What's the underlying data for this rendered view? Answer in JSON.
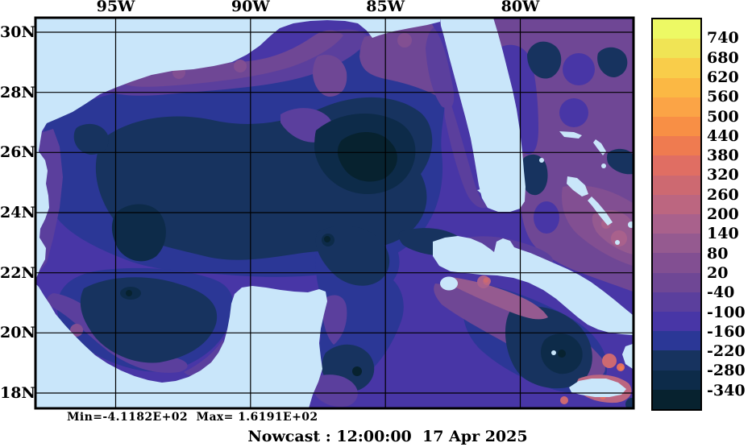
{
  "figure": {
    "title": "Nowcast : 12:00:00  17 Apr 2025",
    "stats_line": "Min=-4.1182E+02  Max= 1.6191E+02",
    "min_value": "-4.1182E+02",
    "max_value": "1.6191E+02"
  },
  "axes": {
    "lon_ticks": [
      "95W",
      "90W",
      "85W",
      "80W"
    ],
    "lat_ticks": [
      "30N",
      "28N",
      "26N",
      "24N",
      "22N",
      "20N",
      "18N"
    ]
  },
  "colorbar": {
    "tick_labels": [
      "740",
      "680",
      "620",
      "560",
      "500",
      "440",
      "380",
      "320",
      "260",
      "200",
      "140",
      "80",
      "20",
      "-40",
      "-100",
      "-160",
      "-220",
      "-280",
      "-340"
    ],
    "band_colors_top_to_bottom": [
      "#edf964",
      "#f0e455",
      "#f9cd4a",
      "#fbb844",
      "#fba446",
      "#f88f45",
      "#ef7b50",
      "#e06e63",
      "#cd6971",
      "#bc6680",
      "#a9618c",
      "#955a90",
      "#824f92",
      "#6f4795",
      "#5b3f9d",
      "#4836a6",
      "#2b3796",
      "#17335f",
      "#0d2b49",
      "#07222f"
    ]
  },
  "palette": {
    "background": "#ffffff",
    "land": "#c9e6fa",
    "frame": "#000000",
    "text": "#000000",
    "ocean_base": "#4836a6"
  }
}
